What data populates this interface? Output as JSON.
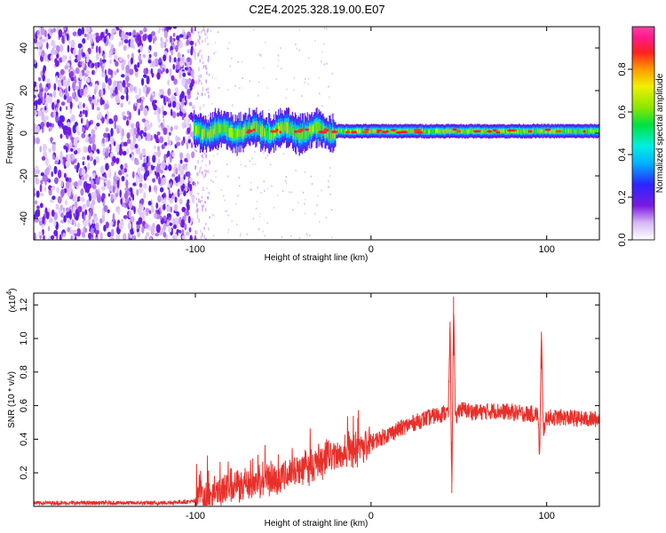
{
  "title": "C2E4.2025.328.19.00.E07",
  "chart_data": [
    {
      "type": "heatmap",
      "name": "spectrogram",
      "xlabel": "Height of straight line (km)",
      "ylabel": "Frequency (Hz)",
      "xlim": [
        -192,
        130
      ],
      "ylim": [
        -50,
        50
      ],
      "xticks": [
        -100,
        0,
        100
      ],
      "yticks": [
        -40,
        -20,
        0,
        20,
        40
      ],
      "colorbar": {
        "label": "Normalized spectral amplitude",
        "range": [
          0,
          1
        ],
        "ticks": [
          0.0,
          0.2,
          0.4,
          0.6,
          0.8
        ]
      },
      "features": {
        "noise_region_x": [
          -192,
          -101
        ],
        "transition_x": [
          -101,
          -92
        ],
        "signal_band_center_hz": 1,
        "signal_band_halfwidth_hz": 4
      }
    },
    {
      "type": "line",
      "name": "snr",
      "xlabel": "Height of straight line (km)",
      "ylabel": "SNR (10 * v/v)",
      "scale_label": "(x10",
      "scale_exponent": "4",
      "xlim": [
        -192,
        130
      ],
      "ylim": [
        0,
        1.27
      ],
      "xticks": [
        -100,
        0,
        100
      ],
      "yticks": [
        0.2,
        0.4,
        0.6,
        0.8,
        1.0,
        1.2
      ],
      "color": "#e8302a",
      "series": [
        {
          "name": "SNR",
          "x": [
            -192,
            -120,
            -100,
            -98,
            -95,
            -90,
            -80,
            -70,
            -60,
            -50,
            -40,
            -30,
            -20,
            -10,
            0,
            10,
            20,
            30,
            40,
            44,
            45,
            46,
            47,
            48,
            50,
            60,
            70,
            80,
            90,
            95,
            96,
            97,
            98,
            100,
            110,
            120,
            130
          ],
          "y": [
            0.02,
            0.02,
            0.03,
            0.09,
            0.05,
            0.07,
            0.13,
            0.14,
            0.16,
            0.18,
            0.22,
            0.26,
            0.3,
            0.33,
            0.38,
            0.43,
            0.48,
            0.52,
            0.55,
            0.56,
            1.1,
            0.08,
            1.25,
            0.5,
            0.58,
            0.56,
            0.57,
            0.56,
            0.55,
            0.55,
            0.3,
            1.04,
            0.45,
            0.53,
            0.53,
            0.52,
            0.52
          ]
        }
      ]
    }
  ]
}
